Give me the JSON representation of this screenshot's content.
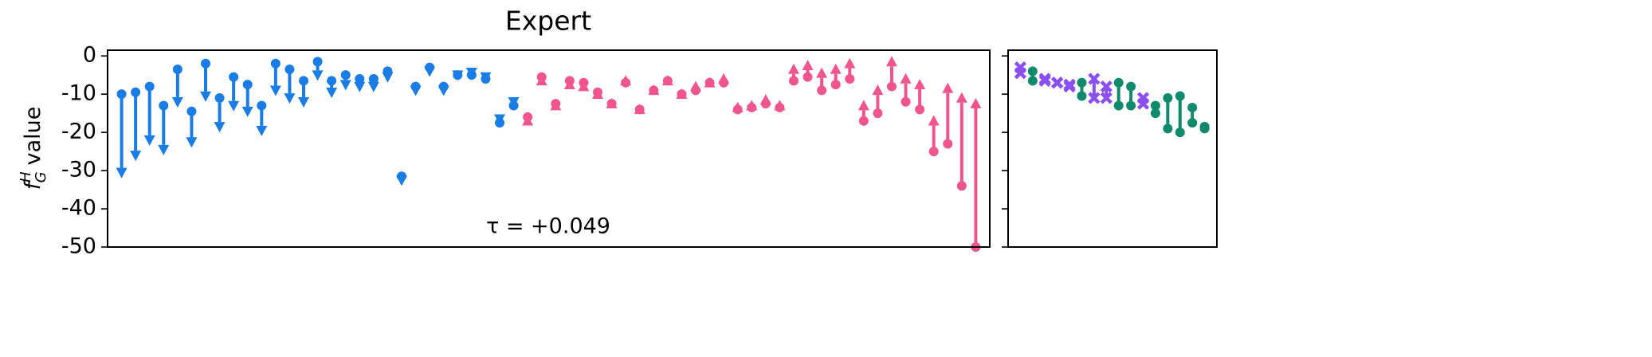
{
  "chart_data": [
    {
      "type": "arrow",
      "title": "Expert",
      "ylabel": {
        "symbol": "f",
        "sup": "H",
        "sub": "G",
        "text": "value"
      },
      "annotation": "τ = +0.049",
      "xlim": [
        -1,
        62
      ],
      "ylim": [
        -50,
        1.5
      ],
      "yticks": [
        0,
        -10,
        -20,
        -30,
        -40,
        -50
      ],
      "series": [
        {
          "color": "#1a7de6",
          "marker": "o",
          "x": [
            0,
            1,
            2,
            3,
            4,
            5,
            6,
            7,
            8,
            9,
            10,
            11,
            12,
            13,
            14,
            15,
            16,
            17,
            18,
            19,
            20,
            21,
            22,
            23,
            24,
            25,
            26,
            27,
            28
          ],
          "values": [
            -10,
            -9.5,
            -8,
            -13,
            -3.5,
            -14.5,
            -2,
            -11,
            -5.5,
            -7.5,
            -13,
            -2,
            -3.5,
            -6.5,
            -1.5,
            -6.5,
            -5,
            -6,
            -6,
            -4,
            -31.5,
            -8,
            -3,
            -8,
            -5,
            -5,
            -6,
            -17.5,
            -13
          ],
          "end_values": [
            -32,
            -27.5,
            -23.5,
            -26,
            -13.5,
            -24,
            -12,
            -20,
            -14.5,
            -16,
            -21,
            -10.5,
            -12.5,
            -13.5,
            -6.5,
            -11,
            -9,
            -9.5,
            -9.5,
            -7,
            -34,
            -10.5,
            -5.5,
            -10.5,
            -6.5,
            -5.8,
            -7,
            -18,
            -13.5
          ]
        },
        {
          "color": "#f0558d",
          "marker": "o",
          "x": [
            29,
            30,
            31,
            32,
            33,
            34,
            35,
            36,
            37,
            38,
            39,
            40,
            41,
            42,
            43,
            44,
            45,
            46,
            47,
            48,
            49,
            50,
            51,
            52,
            53,
            54,
            55,
            56,
            57,
            58,
            59,
            60,
            61
          ],
          "values": [
            -16,
            -5.5,
            -12.5,
            -6.5,
            -7,
            -9.5,
            -12.5,
            -7,
            -14,
            -9,
            -6.5,
            -10,
            -9,
            -7,
            -7,
            -14,
            -13.5,
            -12.5,
            -13.5,
            -6.5,
            -5.5,
            -9,
            -7.5,
            -6,
            -17,
            -15,
            -8,
            -12,
            -14,
            -25,
            -23,
            -34,
            -50
          ],
          "end_values": [
            -15.5,
            -5,
            -11.5,
            -6,
            -6.5,
            -8.5,
            -11,
            -5,
            -12.5,
            -7.5,
            -5,
            -8.5,
            -6.5,
            -5.5,
            -4.5,
            -12,
            -11.5,
            -10,
            -11.5,
            -2,
            -1,
            -3,
            -2,
            -0.5,
            -11.5,
            -7.5,
            0,
            -4.5,
            -6,
            -15.5,
            -7,
            -9.5,
            -11
          ]
        }
      ]
    },
    {
      "type": "pair",
      "xlim": [
        -1,
        16
      ],
      "ylim": [
        -50,
        1.5
      ],
      "yticks": [
        0,
        -10,
        -20,
        -30,
        -40,
        -50
      ],
      "series": [
        {
          "color": "#8a4ff0",
          "marker": "x",
          "x": [
            0,
            2,
            3,
            4,
            6,
            7,
            10
          ],
          "values": [
            -3,
            -6,
            -7,
            -7.5,
            -6,
            -8,
            -11
          ],
          "end_values": [
            -4.5,
            -6.5,
            -7,
            -8,
            -11,
            -11,
            -12.5
          ]
        },
        {
          "color": "#0f8a6c",
          "marker": "o",
          "x": [
            1,
            5,
            8,
            9,
            11,
            12,
            13,
            14,
            15
          ],
          "values": [
            -4,
            -7,
            -7,
            -8,
            -13,
            -11,
            -10.5,
            -13.5,
            -18.5
          ],
          "end_values": [
            -6.5,
            -10.5,
            -13,
            -13,
            -15,
            -19,
            -20,
            -17.5,
            -19
          ]
        }
      ]
    }
  ]
}
